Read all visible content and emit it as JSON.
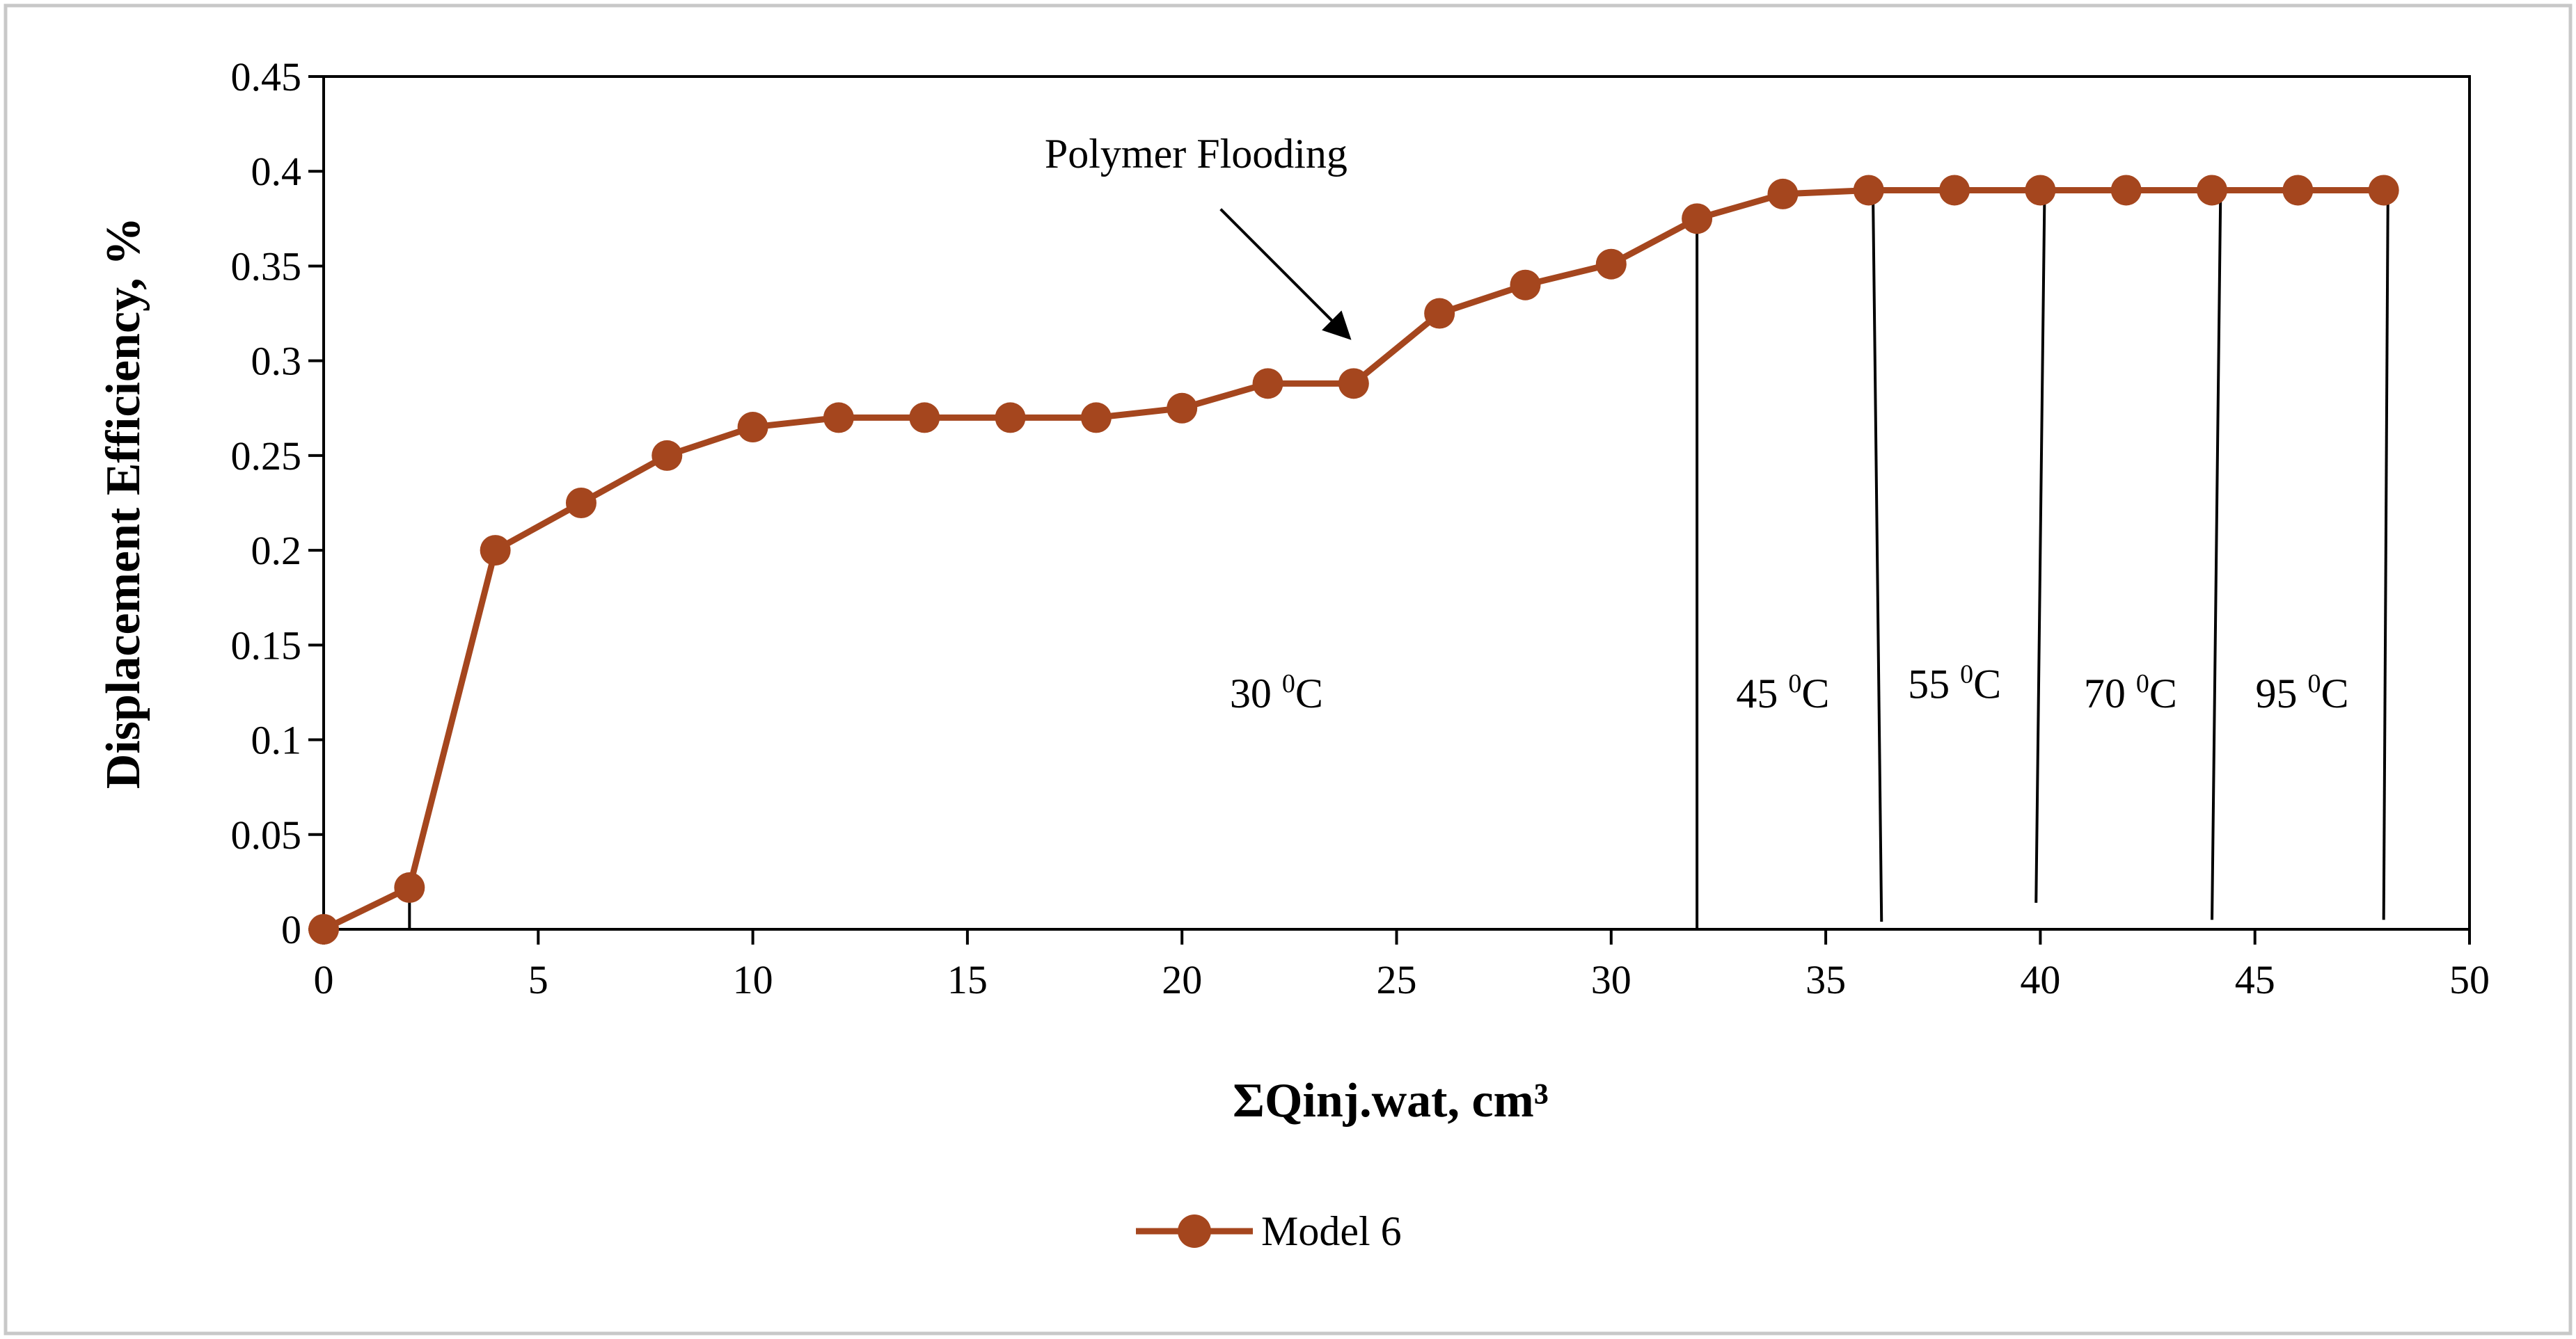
{
  "chart_data": {
    "type": "line",
    "title": "",
    "xlabel": "ΣQinj.wat, cm³",
    "ylabel": "Displacement Efficiency, %",
    "xlim": [
      0,
      50
    ],
    "ylim": [
      0,
      0.45
    ],
    "x_ticks": [
      0,
      5,
      10,
      15,
      20,
      25,
      30,
      35,
      40,
      45,
      50
    ],
    "x_tick_labels": [
      "0",
      "5",
      "10",
      "15",
      "20",
      "25",
      "30",
      "35",
      "40",
      "45",
      "50"
    ],
    "y_ticks": [
      0,
      0.05,
      0.1,
      0.15,
      0.2,
      0.25,
      0.3,
      0.35,
      0.4,
      0.45
    ],
    "y_tick_labels": [
      "0",
      "0.05",
      "0.1",
      "0.15",
      "0.2",
      "0.25",
      "0.3",
      "0.35",
      "0.4",
      "0.45"
    ],
    "grid": false,
    "legend_position": "bottom-center",
    "series": [
      {
        "name": "Model 6",
        "color": "#a5461e",
        "x": [
          0,
          2,
          4,
          6,
          8,
          10,
          12,
          14,
          16,
          18,
          20,
          22,
          24,
          26,
          28,
          30,
          32,
          34,
          36,
          38,
          40,
          42,
          44,
          46,
          48
        ],
        "values": [
          0,
          0.022,
          0.2,
          0.225,
          0.25,
          0.265,
          0.27,
          0.27,
          0.27,
          0.27,
          0.275,
          0.288,
          0.288,
          0.325,
          0.34,
          0.351,
          0.375,
          0.388,
          0.39,
          0.39,
          0.39,
          0.39,
          0.39,
          0.39,
          0.39
        ]
      }
    ],
    "dividers": [
      {
        "x1": 2,
        "y1": 0,
        "x2": 2,
        "y2": 0.022
      },
      {
        "x1": 32,
        "y1": 0,
        "x2": 32,
        "y2": 0.378
      },
      {
        "x1": 36.3,
        "y1": 0.004,
        "x2": 36.1,
        "y2": 0.39
      },
      {
        "x1": 39.9,
        "y1": 0.014,
        "x2": 40.1,
        "y2": 0.39
      },
      {
        "x1": 44,
        "y1": 0.005,
        "x2": 44.2,
        "y2": 0.39
      },
      {
        "x1": 48,
        "y1": 0.005,
        "x2": 48.1,
        "y2": 0.39
      }
    ],
    "arrow_annotation": {
      "text": "Polymer Flooding",
      "text_x": 16.8,
      "text_y": 0.402,
      "from_x": 20.9,
      "from_y": 0.38,
      "to_x": 23.9,
      "to_y": 0.312
    },
    "region_labels": [
      {
        "base": "30 ",
        "sup": "0",
        "unit": "C",
        "x": 22.2,
        "y": 0.117
      },
      {
        "base": "45 ",
        "sup": "0",
        "unit": "C",
        "x": 34.0,
        "y": 0.117
      },
      {
        "base": "55 ",
        "sup": "0",
        "unit": "C",
        "x": 38.0,
        "y": 0.122
      },
      {
        "base": "70 ",
        "sup": "0",
        "unit": "C",
        "x": 42.1,
        "y": 0.117
      },
      {
        "base": "95 ",
        "sup": "0",
        "unit": "C",
        "x": 46.1,
        "y": 0.117
      }
    ]
  }
}
